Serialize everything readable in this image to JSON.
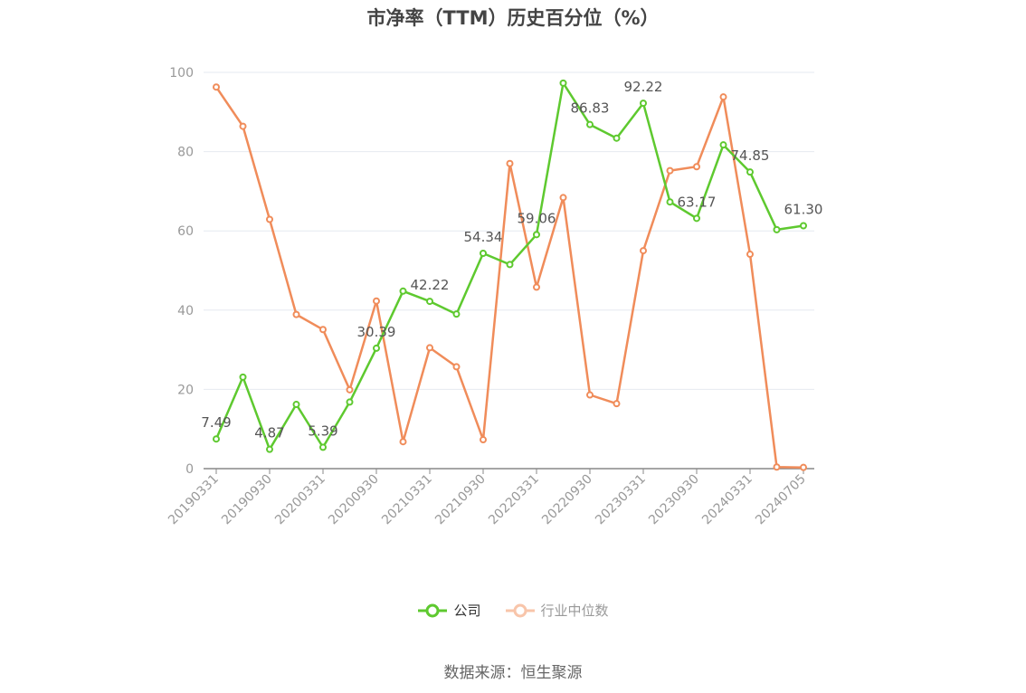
{
  "chart_data": {
    "type": "line",
    "title": "市净率（TTM）历史百分位（%）",
    "ylim": [
      0,
      100
    ],
    "y_ticks": [
      0,
      20,
      40,
      60,
      80,
      100
    ],
    "x": [
      "20190331",
      "20190630",
      "20190930",
      "20191231",
      "20200331",
      "20200630",
      "20200930",
      "20201231",
      "20210331",
      "20210630",
      "20210930",
      "20211231",
      "20220331",
      "20220630",
      "20220930",
      "20221231",
      "20230331",
      "20230630",
      "20230930",
      "20231231",
      "20240331",
      "20240630",
      "20240705"
    ],
    "x_tick_labels": [
      "20190331",
      "20190930",
      "20200331",
      "20200930",
      "20210331",
      "20210930",
      "20220331",
      "20220930",
      "20230331",
      "20230930",
      "20240331",
      "20240705"
    ],
    "grid": true,
    "legend_position": "bottom-center",
    "series": [
      {
        "name": "公司",
        "color": "#5ec92f",
        "values": [
          7.49,
          23.1,
          4.87,
          16.2,
          5.39,
          16.8,
          30.39,
          44.8,
          42.22,
          39.0,
          54.34,
          51.5,
          59.06,
          97.3,
          86.83,
          83.4,
          92.22,
          67.3,
          63.17,
          81.7,
          74.85,
          60.3,
          61.3
        ],
        "labels": [
          "7.49",
          "",
          "4.87",
          "",
          "5.39",
          "",
          "30.39",
          "",
          "42.22",
          "",
          "54.34",
          "",
          "59.06",
          "",
          "86.83",
          "",
          "92.22",
          "",
          "63.17",
          "",
          "74.85",
          "",
          "61.30"
        ]
      },
      {
        "name": "行业中位数",
        "color": "#f08c5a",
        "values": [
          96.3,
          86.4,
          62.9,
          38.9,
          35.1,
          19.9,
          42.3,
          6.8,
          30.5,
          25.7,
          7.3,
          77.0,
          45.8,
          68.4,
          18.6,
          16.4,
          55.0,
          75.2,
          76.2,
          93.8,
          54.1,
          0.4,
          0.3
        ]
      }
    ]
  },
  "legend": {
    "company": "公司",
    "industry": "行业中位数"
  },
  "source": "数据来源：恒生聚源"
}
